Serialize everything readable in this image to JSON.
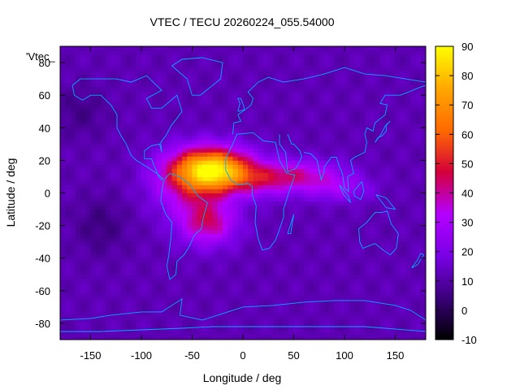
{
  "chart_data": {
    "type": "heatmap",
    "title": "VTEC / TECU 20260224_055.54000",
    "xlabel": "Longitude / deg",
    "ylabel": "Latitude / deg",
    "xlim": [
      -180,
      180
    ],
    "ylim": [
      -90,
      90
    ],
    "x_ticks": [
      -150,
      -100,
      -50,
      0,
      50,
      100,
      150
    ],
    "y_ticks": [
      -80,
      -60,
      -40,
      -20,
      0,
      20,
      40,
      60,
      80
    ],
    "colorbar": {
      "range": [
        -10,
        90
      ],
      "ticks": [
        -10,
        0,
        10,
        20,
        30,
        40,
        50,
        60,
        70,
        80,
        90
      ],
      "palette": [
        "#000000",
        "#3a007a",
        "#7a00e6",
        "#b400ff",
        "#d4003a",
        "#ff6a00",
        "#ffa800",
        "#ffff00"
      ]
    },
    "series_label": "'Vtec_",
    "background_level": 12,
    "peak_value": 88,
    "peak_lon": -30,
    "peak_lat": 15,
    "coastline_color": "#00aaff"
  }
}
